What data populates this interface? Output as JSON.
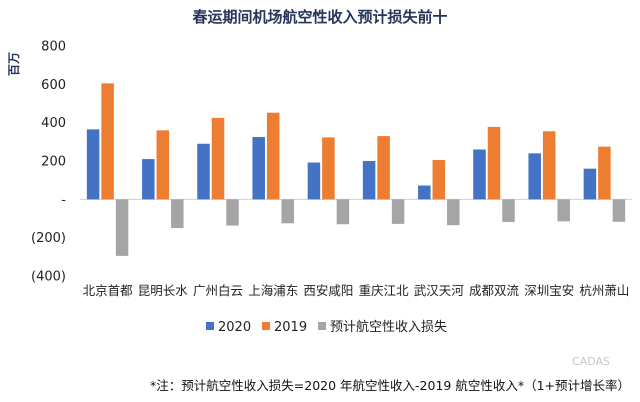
{
  "chart_data": {
    "type": "bar",
    "title": "春运期间机场航空性收入预计损失前十",
    "ylabel": "百万",
    "xlabel": "",
    "ylim": [
      -400,
      800
    ],
    "yticks": [
      800,
      600,
      400,
      200,
      0,
      -200,
      -400
    ],
    "ytick_labels": [
      "800",
      "600",
      "400",
      "200",
      "-",
      "(200)",
      "(400)"
    ],
    "grid": false,
    "legend_position": "bottom",
    "categories": [
      "北京首都",
      "昆明长水",
      "广州白云",
      "上海浦东",
      "西安咸阳",
      "重庆江北",
      "武汉天河",
      "成都双流",
      "深圳宝安",
      "杭州萧山"
    ],
    "series": [
      {
        "name": "2020",
        "color": "#4472c4",
        "values": [
          365,
          210,
          290,
          325,
          192,
          200,
          72,
          260,
          240,
          160
        ]
      },
      {
        "name": "2019",
        "color": "#ed7d31",
        "values": [
          605,
          360,
          425,
          452,
          323,
          330,
          205,
          378,
          355,
          275
        ]
      },
      {
        "name": "预计航空性收入损失",
        "color": "#a5a5a5",
        "values": [
          -295,
          -150,
          -137,
          -125,
          -130,
          -128,
          -135,
          -118,
          -115,
          -117
        ]
      }
    ],
    "footnote": "*注：预计航空性收入损失=2020 年航空性收入-2019 航空性收入*（1+预计增长率）",
    "watermark": "CADAS"
  }
}
